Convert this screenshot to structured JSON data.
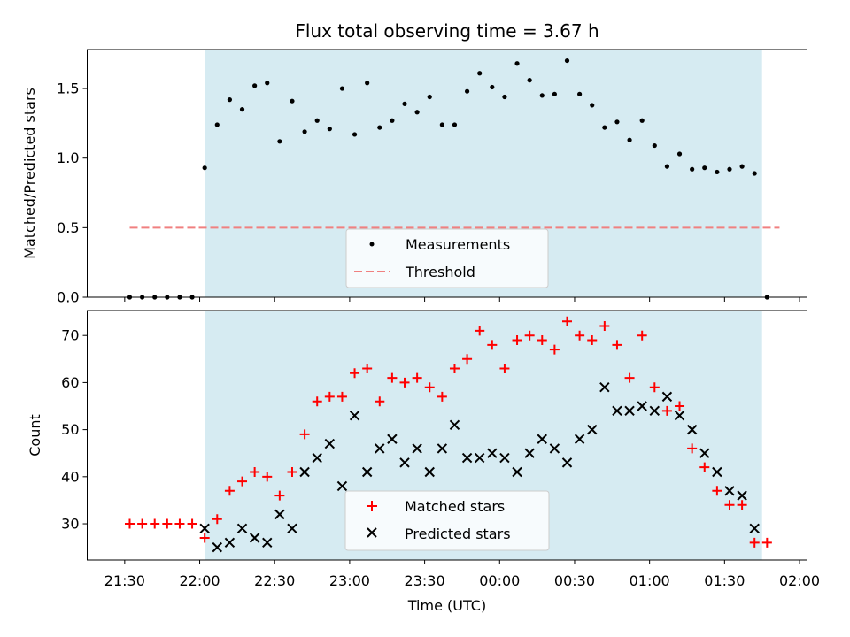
{
  "title": "Flux total observing time = 3.67 h",
  "colors": {
    "shade": "#add8e6",
    "measurement": "#000000",
    "threshold": "#f08080",
    "matched": "#ff0000",
    "predicted": "#000000"
  },
  "chart_data": [
    {
      "type": "scatter",
      "ylabel": "Matched/Predicted stars",
      "ylim": [
        0,
        1.78
      ],
      "yticks": [
        "0.0",
        "0.5",
        "1.0",
        "1.5"
      ],
      "xlim_hours": [
        21.25,
        26.05
      ],
      "observing_window": [
        "22:02",
        "01:45"
      ],
      "grid": false,
      "legend": "lower center",
      "legend_entries": [
        "Measurements",
        "Threshold"
      ],
      "threshold": {
        "value": 0.5,
        "from": "21:32",
        "to": "01:52"
      },
      "series": [
        {
          "name": "Measurements",
          "points": [
            [
              "21:32",
              0.0
            ],
            [
              "21:37",
              0.0
            ],
            [
              "21:42",
              0.0
            ],
            [
              "21:47",
              0.0
            ],
            [
              "21:52",
              0.0
            ],
            [
              "21:57",
              0.0
            ],
            [
              "22:02",
              0.93
            ],
            [
              "22:07",
              1.24
            ],
            [
              "22:12",
              1.42
            ],
            [
              "22:17",
              1.35
            ],
            [
              "22:22",
              1.52
            ],
            [
              "22:27",
              1.54
            ],
            [
              "22:32",
              1.12
            ],
            [
              "22:37",
              1.41
            ],
            [
              "22:42",
              1.19
            ],
            [
              "22:47",
              1.27
            ],
            [
              "22:52",
              1.21
            ],
            [
              "22:57",
              1.5
            ],
            [
              "23:02",
              1.17
            ],
            [
              "23:07",
              1.54
            ],
            [
              "23:12",
              1.22
            ],
            [
              "23:17",
              1.27
            ],
            [
              "23:22",
              1.39
            ],
            [
              "23:27",
              1.33
            ],
            [
              "23:32",
              1.44
            ],
            [
              "23:37",
              1.24
            ],
            [
              "23:42",
              1.24
            ],
            [
              "23:47",
              1.48
            ],
            [
              "23:52",
              1.61
            ],
            [
              "23:57",
              1.51
            ],
            [
              "00:02",
              1.44
            ],
            [
              "00:07",
              1.68
            ],
            [
              "00:12",
              1.56
            ],
            [
              "00:17",
              1.45
            ],
            [
              "00:22",
              1.46
            ],
            [
              "00:27",
              1.7
            ],
            [
              "00:32",
              1.46
            ],
            [
              "00:37",
              1.38
            ],
            [
              "00:42",
              1.22
            ],
            [
              "00:47",
              1.26
            ],
            [
              "00:52",
              1.13
            ],
            [
              "00:57",
              1.27
            ],
            [
              "01:02",
              1.09
            ],
            [
              "01:07",
              0.94
            ],
            [
              "01:12",
              1.03
            ],
            [
              "01:17",
              0.92
            ],
            [
              "01:22",
              0.93
            ],
            [
              "01:27",
              0.9
            ],
            [
              "01:32",
              0.92
            ],
            [
              "01:37",
              0.94
            ],
            [
              "01:42",
              0.89
            ],
            [
              "01:47",
              0.0
            ]
          ]
        }
      ]
    },
    {
      "type": "scatter",
      "xlabel": "Time (UTC)",
      "ylabel": "Count",
      "ylim": [
        22.3,
        75.3
      ],
      "yticks": [
        "30",
        "40",
        "50",
        "60",
        "70"
      ],
      "xticks": [
        "21:30",
        "22:00",
        "22:30",
        "23:00",
        "23:30",
        "00:00",
        "00:30",
        "01:00",
        "01:30",
        "02:00"
      ],
      "xlim_hours": [
        21.25,
        26.05
      ],
      "observing_window": [
        "22:02",
        "01:45"
      ],
      "grid": false,
      "legend": "lower center",
      "legend_entries": [
        "Matched stars",
        "Predicted stars"
      ],
      "series": [
        {
          "name": "Matched stars",
          "points": [
            [
              "21:32",
              30
            ],
            [
              "21:37",
              30
            ],
            [
              "21:42",
              30
            ],
            [
              "21:47",
              30
            ],
            [
              "21:52",
              30
            ],
            [
              "21:57",
              30
            ],
            [
              "22:02",
              27
            ],
            [
              "22:07",
              31
            ],
            [
              "22:12",
              37
            ],
            [
              "22:17",
              39
            ],
            [
              "22:22",
              41
            ],
            [
              "22:27",
              40
            ],
            [
              "22:32",
              36
            ],
            [
              "22:37",
              41
            ],
            [
              "22:42",
              49
            ],
            [
              "22:47",
              56
            ],
            [
              "22:52",
              57
            ],
            [
              "22:57",
              57
            ],
            [
              "23:02",
              62
            ],
            [
              "23:07",
              63
            ],
            [
              "23:12",
              56
            ],
            [
              "23:17",
              61
            ],
            [
              "23:22",
              60
            ],
            [
              "23:27",
              61
            ],
            [
              "23:32",
              59
            ],
            [
              "23:37",
              57
            ],
            [
              "23:42",
              63
            ],
            [
              "23:47",
              65
            ],
            [
              "23:52",
              71
            ],
            [
              "23:57",
              68
            ],
            [
              "00:02",
              63
            ],
            [
              "00:07",
              69
            ],
            [
              "00:12",
              70
            ],
            [
              "00:17",
              69
            ],
            [
              "00:22",
              67
            ],
            [
              "00:27",
              73
            ],
            [
              "00:32",
              70
            ],
            [
              "00:37",
              69
            ],
            [
              "00:42",
              72
            ],
            [
              "00:47",
              68
            ],
            [
              "00:52",
              61
            ],
            [
              "00:57",
              70
            ],
            [
              "01:02",
              59
            ],
            [
              "01:07",
              54
            ],
            [
              "01:12",
              55
            ],
            [
              "01:17",
              46
            ],
            [
              "01:22",
              42
            ],
            [
              "01:27",
              37
            ],
            [
              "01:32",
              34
            ],
            [
              "01:37",
              34
            ],
            [
              "01:42",
              26
            ],
            [
              "01:47",
              26
            ]
          ]
        },
        {
          "name": "Predicted stars",
          "points": [
            [
              "22:02",
              29
            ],
            [
              "22:07",
              25
            ],
            [
              "22:12",
              26
            ],
            [
              "22:17",
              29
            ],
            [
              "22:22",
              27
            ],
            [
              "22:27",
              26
            ],
            [
              "22:32",
              32
            ],
            [
              "22:37",
              29
            ],
            [
              "22:42",
              41
            ],
            [
              "22:47",
              44
            ],
            [
              "22:52",
              47
            ],
            [
              "22:57",
              38
            ],
            [
              "23:02",
              53
            ],
            [
              "23:07",
              41
            ],
            [
              "23:12",
              46
            ],
            [
              "23:17",
              48
            ],
            [
              "23:22",
              43
            ],
            [
              "23:27",
              46
            ],
            [
              "23:32",
              41
            ],
            [
              "23:37",
              46
            ],
            [
              "23:42",
              51
            ],
            [
              "23:47",
              44
            ],
            [
              "23:52",
              44
            ],
            [
              "23:57",
              45
            ],
            [
              "00:02",
              44
            ],
            [
              "00:07",
              41
            ],
            [
              "00:12",
              45
            ],
            [
              "00:17",
              48
            ],
            [
              "00:22",
              46
            ],
            [
              "00:27",
              43
            ],
            [
              "00:32",
              48
            ],
            [
              "00:37",
              50
            ],
            [
              "00:42",
              59
            ],
            [
              "00:47",
              54
            ],
            [
              "00:52",
              54
            ],
            [
              "00:57",
              55
            ],
            [
              "01:02",
              54
            ],
            [
              "01:07",
              57
            ],
            [
              "01:12",
              53
            ],
            [
              "01:17",
              50
            ],
            [
              "01:22",
              45
            ],
            [
              "01:27",
              41
            ],
            [
              "01:32",
              37
            ],
            [
              "01:37",
              36
            ],
            [
              "01:42",
              29
            ]
          ]
        }
      ]
    }
  ]
}
